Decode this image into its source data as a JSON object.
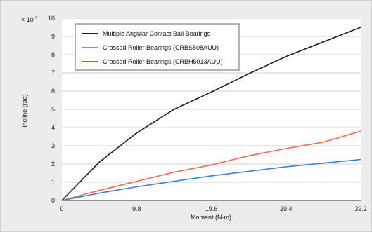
{
  "chart_data": {
    "type": "line",
    "title": "",
    "xlabel": "Moment (N·m)",
    "ylabel": "Incline (rad)",
    "y_multiplier": "× 10",
    "y_multiplier_exp": "-4",
    "xlim": [
      0,
      39.2
    ],
    "ylim": [
      0,
      10
    ],
    "xticks": [
      0,
      9.8,
      19.6,
      29.4,
      39.2
    ],
    "xtick_labels": [
      "0",
      "9.8",
      "19.6",
      "29.4",
      "39.2"
    ],
    "yticks": [
      0,
      1,
      2,
      3,
      4,
      5,
      6,
      7,
      8,
      9,
      10
    ],
    "grid": true,
    "legend_position": "top-left",
    "series": [
      {
        "name": "Multiple Angular Contact Ball Bearings",
        "color": "#1a1a1a",
        "x": [
          0,
          4.9,
          9.8,
          14.7,
          19.6,
          24.5,
          29.4,
          34.3,
          39.2
        ],
        "y": [
          0,
          2.1,
          3.7,
          5.0,
          5.95,
          6.95,
          7.9,
          8.7,
          9.5
        ]
      },
      {
        "name": "Crossed Roller Bearings (CRBS508AUU)",
        "color": "#f26b5b",
        "x": [
          0,
          4.9,
          9.8,
          14.7,
          19.6,
          24.5,
          29.4,
          34.3,
          39.2
        ],
        "y": [
          0,
          0.55,
          1.05,
          1.55,
          1.95,
          2.45,
          2.85,
          3.2,
          3.8
        ]
      },
      {
        "name": "Crossed Roller Bearings (CRBH5013AUU)",
        "color": "#3b82d0",
        "x": [
          0,
          4.9,
          9.8,
          14.7,
          19.6,
          24.5,
          29.4,
          34.3,
          39.2
        ],
        "y": [
          0,
          0.4,
          0.75,
          1.05,
          1.35,
          1.6,
          1.85,
          2.05,
          2.25
        ]
      }
    ]
  }
}
